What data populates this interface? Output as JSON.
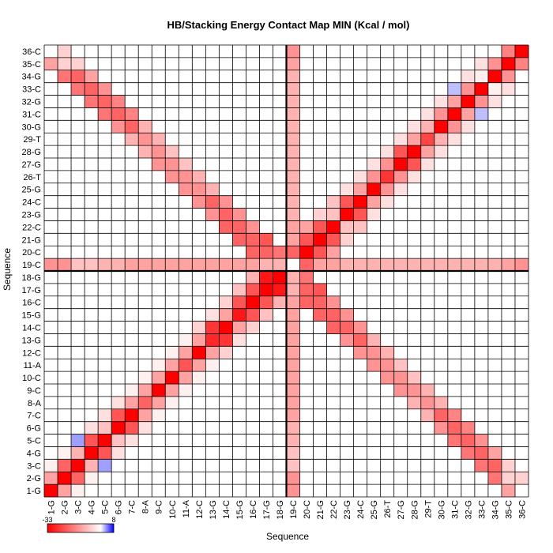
{
  "chart_data": {
    "type": "heatmap",
    "title": "HB/Stacking Energy Contact Map MIN (Kcal / mol)",
    "xlabel": "Sequence",
    "ylabel": "Sequence",
    "labels": [
      "1-G",
      "2-G",
      "3-C",
      "4-G",
      "5-C",
      "6-G",
      "7-C",
      "8-A",
      "9-C",
      "10-C",
      "11-A",
      "12-C",
      "13-G",
      "14-C",
      "15-G",
      "16-C",
      "17-G",
      "18-G",
      "19-C",
      "20-C",
      "21-G",
      "22-C",
      "23-G",
      "24-C",
      "25-G",
      "26-T",
      "27-G",
      "28-G",
      "29-T",
      "30-G",
      "31-C",
      "32-G",
      "33-C",
      "34-G",
      "35-C",
      "36-C"
    ],
    "colorbar": {
      "min": -33,
      "max": 8,
      "min_label": "-33",
      "max_label": "8",
      "colors": {
        "negative": "#ff0000",
        "zero": "#ffffff",
        "positive": "#0000ff"
      }
    },
    "divider_after_index": 18,
    "matrix_note": "symmetric; cells list [i, j, value] for i >= j (1-based)",
    "cells": [
      [
        1,
        1,
        -33
      ],
      [
        2,
        2,
        -33
      ],
      [
        3,
        3,
        -33
      ],
      [
        4,
        4,
        -33
      ],
      [
        5,
        5,
        -33
      ],
      [
        6,
        6,
        -33
      ],
      [
        7,
        7,
        -33
      ],
      [
        8,
        8,
        -20
      ],
      [
        9,
        9,
        -33
      ],
      [
        10,
        10,
        -33
      ],
      [
        11,
        11,
        -22
      ],
      [
        12,
        12,
        -33
      ],
      [
        13,
        13,
        -28
      ],
      [
        14,
        14,
        -33
      ],
      [
        15,
        15,
        -30
      ],
      [
        16,
        16,
        -33
      ],
      [
        17,
        17,
        -33
      ],
      [
        18,
        18,
        -33
      ],
      [
        20,
        20,
        -33
      ],
      [
        21,
        21,
        -33
      ],
      [
        22,
        22,
        -33
      ],
      [
        23,
        23,
        -33
      ],
      [
        24,
        24,
        -33
      ],
      [
        25,
        25,
        -33
      ],
      [
        26,
        26,
        -26
      ],
      [
        27,
        27,
        -33
      ],
      [
        28,
        28,
        -33
      ],
      [
        29,
        29,
        -24
      ],
      [
        30,
        30,
        -33
      ],
      [
        31,
        31,
        -33
      ],
      [
        32,
        32,
        -33
      ],
      [
        33,
        33,
        -33
      ],
      [
        34,
        34,
        -33
      ],
      [
        35,
        35,
        -33
      ],
      [
        36,
        36,
        -33
      ],
      [
        2,
        1,
        -12
      ],
      [
        3,
        2,
        -20
      ],
      [
        4,
        3,
        -10
      ],
      [
        5,
        4,
        -22
      ],
      [
        6,
        5,
        -8
      ],
      [
        7,
        6,
        -22
      ],
      [
        8,
        7,
        -12
      ],
      [
        9,
        8,
        -12
      ],
      [
        10,
        9,
        -12
      ],
      [
        11,
        10,
        -12
      ],
      [
        12,
        11,
        -12
      ],
      [
        13,
        12,
        -12
      ],
      [
        14,
        13,
        -26
      ],
      [
        15,
        14,
        -12
      ],
      [
        16,
        15,
        -22
      ],
      [
        17,
        16,
        -22
      ],
      [
        18,
        17,
        -30
      ],
      [
        21,
        20,
        -22
      ],
      [
        22,
        21,
        -22
      ],
      [
        23,
        22,
        -8
      ],
      [
        24,
        23,
        -22
      ],
      [
        25,
        24,
        -12
      ],
      [
        26,
        25,
        -14
      ],
      [
        27,
        26,
        -14
      ],
      [
        28,
        27,
        -22
      ],
      [
        29,
        28,
        -12
      ],
      [
        30,
        29,
        -10
      ],
      [
        31,
        30,
        -14
      ],
      [
        32,
        31,
        -12
      ],
      [
        33,
        32,
        -14
      ],
      [
        34,
        33,
        -2
      ],
      [
        35,
        34,
        -14
      ],
      [
        36,
        35,
        -16
      ],
      [
        35,
        2,
        -6
      ],
      [
        34,
        3,
        -20
      ],
      [
        33,
        4,
        -20
      ],
      [
        32,
        5,
        -20
      ],
      [
        31,
        6,
        -20
      ],
      [
        30,
        7,
        -20
      ],
      [
        29,
        8,
        -14
      ],
      [
        28,
        9,
        -14
      ],
      [
        27,
        10,
        -14
      ],
      [
        26,
        11,
        -14
      ],
      [
        25,
        12,
        -14
      ],
      [
        24,
        13,
        -20
      ],
      [
        23,
        14,
        -20
      ],
      [
        22,
        15,
        -20
      ],
      [
        21,
        16,
        -20
      ],
      [
        20,
        17,
        -20
      ],
      [
        35,
        1,
        -12
      ],
      [
        34,
        2,
        -18
      ],
      [
        33,
        3,
        -18
      ],
      [
        32,
        4,
        -18
      ],
      [
        31,
        5,
        -18
      ],
      [
        30,
        6,
        -14
      ],
      [
        29,
        7,
        -10
      ],
      [
        28,
        8,
        -10
      ],
      [
        27,
        9,
        -14
      ],
      [
        26,
        10,
        -14
      ],
      [
        25,
        11,
        -14
      ],
      [
        24,
        12,
        -14
      ],
      [
        23,
        13,
        -14
      ],
      [
        22,
        14,
        -20
      ],
      [
        21,
        15,
        -20
      ],
      [
        20,
        16,
        -20
      ],
      [
        19,
        17,
        -10
      ],
      [
        36,
        2,
        -6
      ],
      [
        35,
        3,
        -6
      ],
      [
        34,
        4,
        -12
      ],
      [
        33,
        5,
        -14
      ],
      [
        32,
        6,
        -16
      ],
      [
        31,
        7,
        -16
      ],
      [
        30,
        8,
        -10
      ],
      [
        29,
        9,
        -10
      ],
      [
        28,
        10,
        -8
      ],
      [
        27,
        11,
        -8
      ],
      [
        26,
        12,
        -10
      ],
      [
        25,
        13,
        -10
      ],
      [
        24,
        14,
        -14
      ],
      [
        23,
        15,
        -14
      ],
      [
        22,
        16,
        -14
      ],
      [
        21,
        17,
        -22
      ],
      [
        20,
        18,
        -18
      ],
      [
        3,
        1,
        -2
      ],
      [
        4,
        2,
        -2
      ],
      [
        5,
        3,
        3
      ],
      [
        6,
        4,
        -4
      ],
      [
        7,
        5,
        -4
      ],
      [
        8,
        6,
        -4
      ],
      [
        9,
        7,
        -2
      ],
      [
        10,
        8,
        -2
      ],
      [
        11,
        9,
        -2
      ],
      [
        12,
        10,
        -2
      ],
      [
        13,
        11,
        -2
      ],
      [
        14,
        12,
        -6
      ],
      [
        15,
        13,
        -4
      ],
      [
        16,
        14,
        -6
      ],
      [
        17,
        15,
        -8
      ],
      [
        18,
        16,
        -10
      ],
      [
        22,
        20,
        -12
      ],
      [
        23,
        21,
        -6
      ],
      [
        24,
        22,
        -8
      ],
      [
        25,
        23,
        -4
      ],
      [
        26,
        24,
        -4
      ],
      [
        27,
        25,
        -4
      ],
      [
        28,
        26,
        -4
      ],
      [
        29,
        27,
        -4
      ],
      [
        30,
        28,
        -4
      ],
      [
        31,
        29,
        -4
      ],
      [
        32,
        30,
        -4
      ],
      [
        33,
        31,
        2
      ],
      [
        34,
        32,
        -4
      ],
      [
        35,
        33,
        -4
      ],
      [
        19,
        1,
        -14
      ],
      [
        19,
        2,
        -14
      ],
      [
        19,
        3,
        -8
      ],
      [
        19,
        4,
        -8
      ],
      [
        19,
        5,
        -10
      ],
      [
        19,
        6,
        -10
      ],
      [
        19,
        7,
        -12
      ],
      [
        19,
        8,
        -12
      ],
      [
        19,
        9,
        -12
      ],
      [
        19,
        10,
        -12
      ],
      [
        19,
        11,
        -12
      ],
      [
        19,
        12,
        -12
      ],
      [
        19,
        13,
        -12
      ],
      [
        19,
        14,
        -12
      ],
      [
        19,
        15,
        -12
      ],
      [
        19,
        16,
        -12
      ],
      [
        19,
        18,
        -10
      ],
      [
        20,
        19,
        -20
      ],
      [
        21,
        19,
        -12
      ],
      [
        22,
        19,
        -12
      ],
      [
        23,
        19,
        -10
      ],
      [
        24,
        19,
        -10
      ],
      [
        25,
        19,
        -10
      ],
      [
        26,
        19,
        -10
      ],
      [
        27,
        19,
        -10
      ],
      [
        28,
        19,
        -10
      ],
      [
        29,
        19,
        -10
      ],
      [
        30,
        19,
        -10
      ],
      [
        31,
        19,
        -10
      ],
      [
        32,
        19,
        -10
      ],
      [
        33,
        19,
        -10
      ],
      [
        34,
        19,
        -10
      ],
      [
        35,
        19,
        -12
      ],
      [
        36,
        19,
        -14
      ]
    ]
  }
}
